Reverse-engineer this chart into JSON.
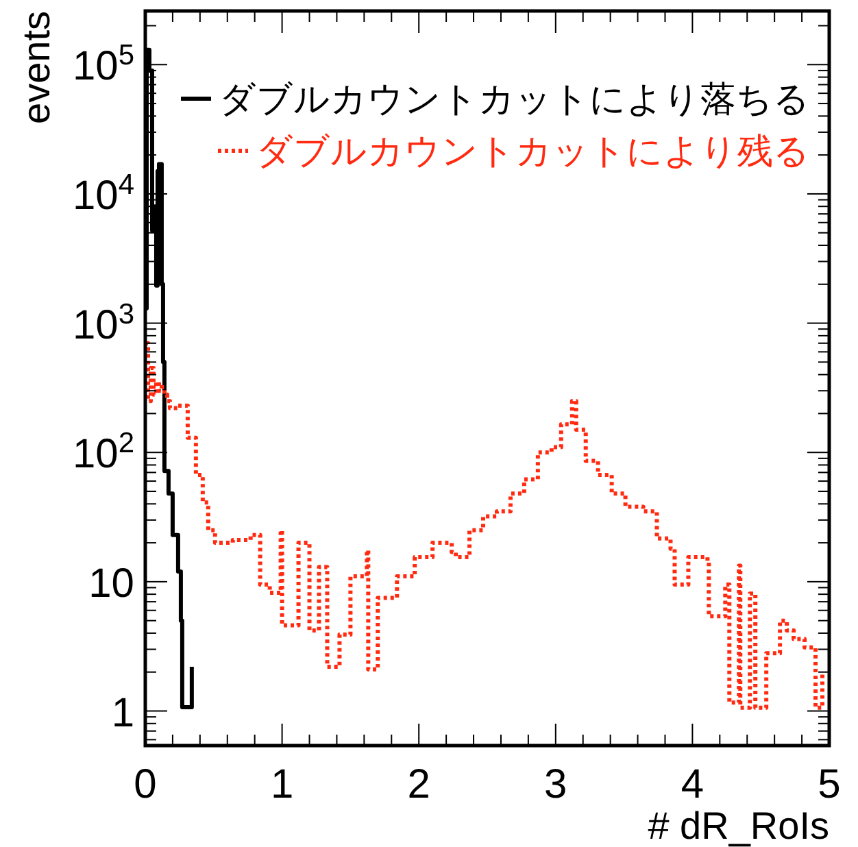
{
  "chart_data": {
    "type": "step",
    "xlabel": "# dR_RoIs",
    "ylabel": "events",
    "log": "y",
    "legend": "top right",
    "grid": false,
    "xlim": [
      0,
      5
    ],
    "ylim": [
      0.54,
      260000
    ],
    "xticks": [
      0,
      1,
      2,
      3,
      4,
      5
    ],
    "yticks": [
      {
        "value": 1,
        "label": "1"
      },
      {
        "value": 10,
        "label": "10"
      },
      {
        "value": 100,
        "label": "10$^{2}$"
      },
      {
        "value": 1000,
        "label": "10$^{3}$"
      },
      {
        "value": 10000,
        "label": "10$^{4}$"
      },
      {
        "value": 100000,
        "label": "10$^{5}$"
      }
    ],
    "series": [
      {
        "name": "ダブルカウントカットにより落ちる",
        "color": "#000000",
        "line_style": "solid",
        "x": [
          0.0,
          0.01,
          0.03,
          0.05,
          0.07,
          0.08,
          0.09,
          0.1,
          0.12,
          0.13,
          0.14,
          0.17,
          0.2,
          0.24,
          0.26,
          0.27,
          0.34
        ],
        "values": [
          1300,
          130000,
          90000,
          5200,
          8000,
          1950,
          15000,
          17000,
          2000,
          500,
          72,
          48,
          23,
          12,
          5,
          1.07,
          2.2
        ]
      },
      {
        "name": "ダブルカウントカットにより残る",
        "color": "#ff2a10",
        "line_style": "dotted",
        "x": [
          0.0,
          0.02,
          0.04,
          0.06,
          0.08,
          0.1,
          0.12,
          0.14,
          0.16,
          0.18,
          0.24,
          0.31,
          0.37,
          0.42,
          0.46,
          0.51,
          0.64,
          0.77,
          0.84,
          0.91,
          0.99,
          1.0,
          1.12,
          1.2,
          1.27,
          1.33,
          1.42,
          1.5,
          1.62,
          1.63,
          1.7,
          1.84,
          1.97,
          2.1,
          2.24,
          2.27,
          2.37,
          2.47,
          2.57,
          2.67,
          2.77,
          2.87,
          2.97,
          3.04,
          3.12,
          3.15,
          3.22,
          3.31,
          3.41,
          3.51,
          3.64,
          3.74,
          3.84,
          3.87,
          3.97,
          4.11,
          4.12,
          4.24,
          4.27,
          4.34,
          4.35,
          4.42,
          4.46,
          4.54,
          4.64,
          4.69,
          4.74,
          4.82,
          4.87,
          4.9,
          4.95
        ],
        "values": [
          700,
          250,
          450,
          280,
          350,
          300,
          320,
          280,
          250,
          220,
          230,
          130,
          67,
          41,
          25,
          20,
          21,
          23,
          9.5,
          8.2,
          25,
          4.6,
          20,
          4.2,
          13,
          2.2,
          3.9,
          11,
          17.5,
          2.1,
          7.5,
          11,
          15.5,
          20,
          17,
          15.5,
          25,
          32,
          35,
          48,
          62,
          100,
          110,
          165,
          250,
          150,
          86,
          67,
          48,
          38,
          35,
          21.6,
          18,
          9.5,
          15.5,
          14.3,
          5.4,
          9.5,
          1.16,
          13.3,
          1.06,
          8.1,
          1.06,
          2.8,
          5,
          4.2,
          3.6,
          3.1,
          3.1,
          1.06,
          2
        ]
      }
    ]
  }
}
